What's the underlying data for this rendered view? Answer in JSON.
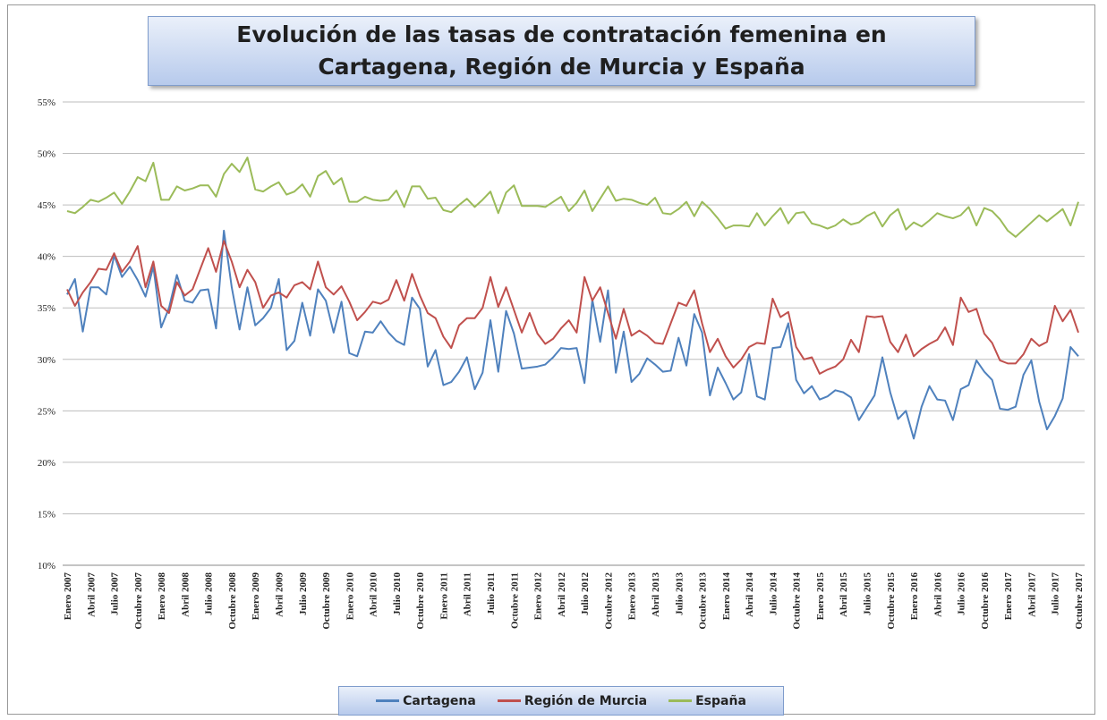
{
  "chart_data": {
    "type": "line",
    "title": "Evolución de las tasas de contratación femenina en Cartagena, Región de Murcia y España",
    "categories": [
      "Enero 2007",
      null,
      null,
      "Abril 2007",
      null,
      null,
      "Julio 2007",
      null,
      null,
      "Octubre 2007",
      null,
      null,
      "Enero 2008",
      null,
      null,
      "Abril 2008",
      null,
      null,
      "Julio 2008",
      null,
      null,
      "Octubre 2008",
      null,
      null,
      "Enero 2009",
      null,
      null,
      "Abril 2009",
      null,
      null,
      "Julio 2009",
      null,
      null,
      "Octubre 2009",
      null,
      null,
      "Enero 2010",
      null,
      null,
      "Abril 2010",
      null,
      null,
      "Julio 2010",
      null,
      null,
      "Octubre 2010",
      null,
      null,
      "Enero 2011",
      null,
      null,
      "Abril 2011",
      null,
      null,
      "Julio 2011",
      null,
      null,
      "Octubre 2011",
      null,
      null,
      "Enero 2012",
      null,
      null,
      "Abril 2012",
      null,
      null,
      "Julio 2012",
      null,
      null,
      "Octubre 2012",
      null,
      null,
      "Enero 2013",
      null,
      null,
      "Abril 2013",
      null,
      null,
      "Julio 2013",
      null,
      null,
      "Octubre 2013",
      null,
      null,
      "Enero 2014",
      null,
      null,
      "Abril 2014",
      null,
      null,
      "Julio 2014",
      null,
      null,
      "Octubre 2014",
      null,
      null,
      "Enero 2015",
      null,
      null,
      "Abril 2015",
      null,
      null,
      "Julio 2015",
      null,
      null,
      "Octubre 2015",
      null,
      null,
      "Enero 2016",
      null,
      null,
      "Abril 2016",
      null,
      null,
      "Julio 2016",
      null,
      null,
      "Octubre 2016",
      null,
      null,
      "Enero 2017",
      null,
      null,
      "Abril 2017",
      null,
      null,
      "Julio 2017",
      null,
      null,
      "Octubre 2017"
    ],
    "series": [
      {
        "name": "Cartagena",
        "color": "#4f81bd",
        "values": [
          36.3,
          37.8,
          32.7,
          37.0,
          37.0,
          36.3,
          40.1,
          38.0,
          39.0,
          37.7,
          36.1,
          39.0,
          33.1,
          35.0,
          38.2,
          35.7,
          35.5,
          36.7,
          36.8,
          33.0,
          42.5,
          37.0,
          32.9,
          37.0,
          33.3,
          34.0,
          35.0,
          37.8,
          30.9,
          31.8,
          35.5,
          32.3,
          36.8,
          35.7,
          32.6,
          35.6,
          30.6,
          30.3,
          32.7,
          32.6,
          33.7,
          32.6,
          31.8,
          31.4,
          36.0,
          34.9,
          29.3,
          30.9,
          27.5,
          27.8,
          28.8,
          30.2,
          27.1,
          28.7,
          33.8,
          28.8,
          34.7,
          32.5,
          29.1,
          29.2,
          29.3,
          29.5,
          30.2,
          31.1,
          31.0,
          31.1,
          27.7,
          35.8,
          31.7,
          36.7,
          28.7,
          32.7,
          27.8,
          28.6,
          30.1,
          29.5,
          28.8,
          28.9,
          32.1,
          29.4,
          34.4,
          32.6,
          26.5,
          29.2,
          27.7,
          26.1,
          26.8,
          30.5,
          26.4,
          26.1,
          31.1,
          31.2,
          33.5,
          28.0,
          26.7,
          27.4,
          26.1,
          26.4,
          27.0,
          26.8,
          26.3,
          24.1,
          25.3,
          26.5,
          30.2,
          26.8,
          24.2,
          25.0,
          22.3,
          25.4,
          27.4,
          26.1,
          26.0,
          24.1,
          27.1,
          27.5,
          29.9,
          28.8,
          28.0,
          25.2,
          25.1,
          25.4,
          28.5,
          29.9,
          25.9,
          23.2,
          24.5,
          26.2,
          31.2,
          30.3
        ]
      },
      {
        "name": "Región de Murcia",
        "color": "#c0504d",
        "values": [
          36.8,
          35.2,
          36.5,
          37.5,
          38.8,
          38.7,
          40.3,
          38.5,
          39.5,
          41.0,
          37.0,
          39.5,
          35.2,
          34.5,
          37.5,
          36.2,
          36.8,
          38.8,
          40.8,
          38.5,
          41.5,
          39.5,
          37.0,
          38.7,
          37.5,
          35.0,
          36.2,
          36.5,
          36.0,
          37.2,
          37.5,
          36.8,
          39.5,
          37.0,
          36.3,
          37.1,
          35.6,
          33.8,
          34.6,
          35.6,
          35.4,
          35.8,
          37.7,
          35.7,
          38.3,
          36.2,
          34.5,
          34.0,
          32.2,
          31.1,
          33.3,
          34.0,
          34.0,
          35.0,
          38.0,
          35.1,
          37.0,
          34.8,
          32.6,
          34.5,
          32.5,
          31.5,
          32.0,
          33.0,
          33.8,
          32.6,
          38.0,
          35.7,
          37.0,
          34.5,
          32.0,
          34.9,
          32.3,
          32.8,
          32.3,
          31.6,
          31.5,
          33.5,
          35.5,
          35.2,
          36.7,
          33.5,
          30.7,
          32.0,
          30.3,
          29.2,
          30.0,
          31.2,
          31.6,
          31.5,
          35.9,
          34.1,
          34.6,
          31.2,
          30.0,
          30.2,
          28.6,
          29.0,
          29.3,
          30.0,
          31.9,
          30.7,
          34.2,
          34.1,
          34.2,
          31.7,
          30.7,
          32.4,
          30.3,
          31.0,
          31.5,
          31.9,
          33.1,
          31.4,
          36.0,
          34.6,
          34.9,
          32.5,
          31.6,
          29.9,
          29.6,
          29.6,
          30.5,
          32.0,
          31.3,
          31.7,
          35.2,
          33.7,
          34.8,
          32.6
        ]
      },
      {
        "name": "España",
        "color": "#9bbb59",
        "values": [
          44.4,
          44.2,
          44.8,
          45.5,
          45.3,
          45.7,
          46.2,
          45.1,
          46.3,
          47.7,
          47.3,
          49.1,
          45.5,
          45.5,
          46.8,
          46.4,
          46.6,
          46.9,
          46.9,
          45.8,
          48.0,
          49.0,
          48.2,
          49.6,
          46.5,
          46.3,
          46.8,
          47.2,
          46.0,
          46.3,
          47.0,
          45.8,
          47.8,
          48.3,
          47.0,
          47.6,
          45.3,
          45.3,
          45.8,
          45.5,
          45.4,
          45.5,
          46.4,
          44.8,
          46.8,
          46.8,
          45.6,
          45.7,
          44.5,
          44.3,
          45.0,
          45.6,
          44.8,
          45.5,
          46.3,
          44.2,
          46.2,
          46.9,
          44.9,
          44.9,
          44.9,
          44.8,
          45.3,
          45.8,
          44.4,
          45.2,
          46.4,
          44.4,
          45.6,
          46.8,
          45.4,
          45.6,
          45.5,
          45.2,
          45.0,
          45.7,
          44.2,
          44.1,
          44.6,
          45.3,
          43.9,
          45.3,
          44.6,
          43.7,
          42.7,
          43.0,
          43.0,
          42.9,
          44.2,
          43.0,
          43.9,
          44.7,
          43.2,
          44.2,
          44.3,
          43.2,
          43.0,
          42.7,
          43.0,
          43.6,
          43.1,
          43.3,
          43.9,
          44.3,
          42.9,
          44.0,
          44.6,
          42.6,
          43.3,
          42.9,
          43.5,
          44.2,
          43.9,
          43.7,
          44.0,
          44.8,
          43.0,
          44.7,
          44.4,
          43.6,
          42.5,
          41.9,
          42.6,
          43.3,
          44.0,
          43.4,
          44.0,
          44.6,
          43.0,
          45.3
        ]
      }
    ],
    "ylim": [
      10,
      55
    ],
    "yticks": [
      {
        "value": 10,
        "label": "10%"
      },
      {
        "value": 15,
        "label": "15%"
      },
      {
        "value": 20,
        "label": "20%"
      },
      {
        "value": 25,
        "label": "25%"
      },
      {
        "value": 30,
        "label": "30%"
      },
      {
        "value": 35,
        "label": "35%"
      },
      {
        "value": 40,
        "label": "40%"
      },
      {
        "value": 45,
        "label": "45%"
      },
      {
        "value": 50,
        "label": "50%"
      },
      {
        "value": 55,
        "label": "55%"
      }
    ],
    "grid": true,
    "legend": "bottom"
  }
}
